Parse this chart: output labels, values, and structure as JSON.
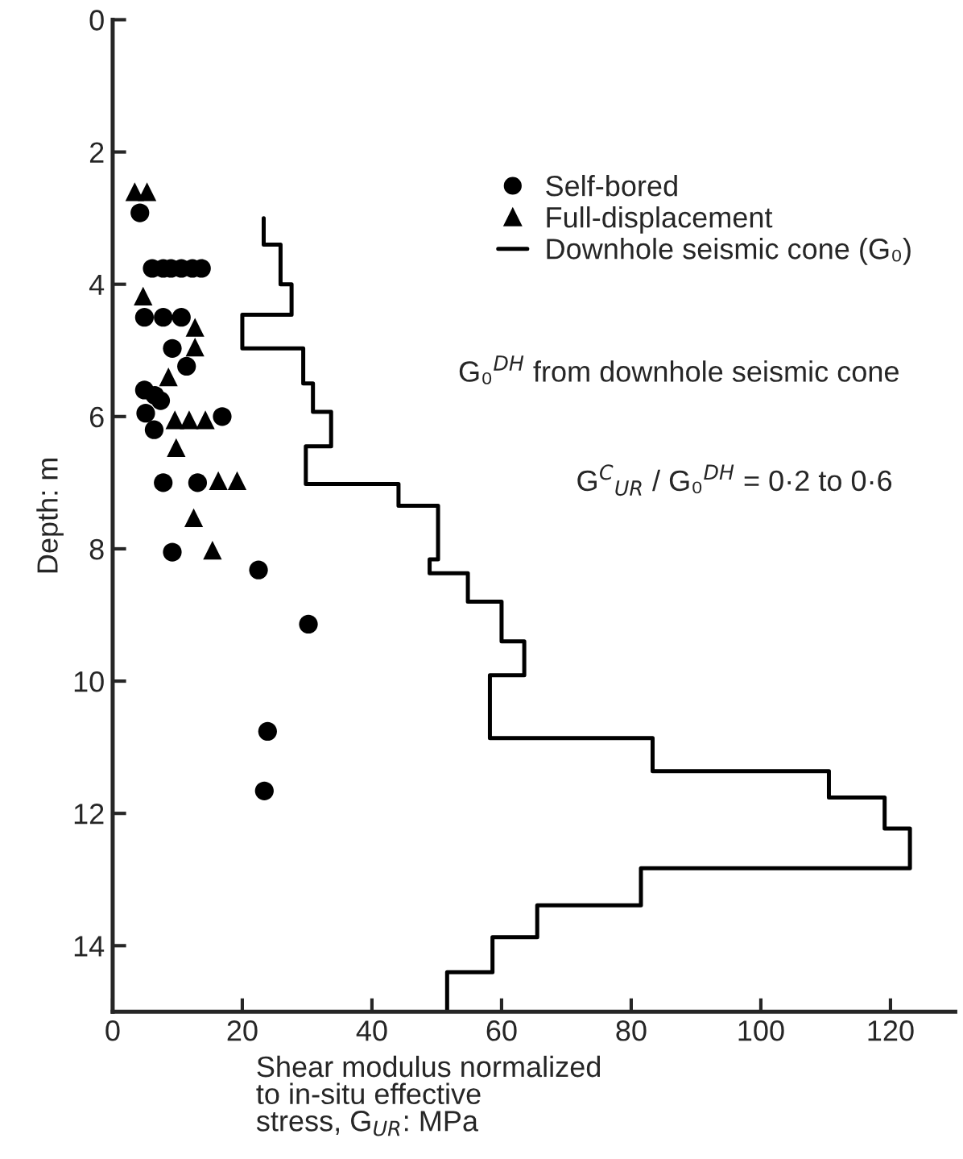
{
  "chart_data": {
    "type": "scatter",
    "xlabel": "Shear modulus normalized\nto in-situ effective\nstress, G$_{UR}$: MPa",
    "ylabel": "Depth: m",
    "xlim": [
      0,
      130
    ],
    "xticks": [
      0,
      20,
      40,
      60,
      80,
      100,
      120
    ],
    "ylim": [
      15,
      0
    ],
    "yticks": [
      0,
      2,
      4,
      6,
      8,
      10,
      12,
      14
    ],
    "grid": false,
    "legend": "top right",
    "annotations": [
      "G₀$^{DH}$ from downhole seismic cone",
      "G$^{C}$$_{UR}$ / G₀$^{DH}$ = 0·2 to 0·6"
    ],
    "series": [
      {
        "name": "Self-bored",
        "marker": "circle",
        "color": "#000000",
        "x": [
          4.2,
          6.1,
          7.8,
          9.0,
          10.6,
          12.3,
          13.7,
          4.9,
          7.8,
          10.6,
          9.2,
          11.4,
          4.9,
          6.5,
          7.4,
          5.1,
          16.9,
          6.4,
          7.8,
          13.1,
          9.2,
          22.5,
          30.2,
          23.9,
          23.4
        ],
        "values": [
          2.92,
          3.76,
          3.76,
          3.76,
          3.76,
          3.76,
          3.76,
          4.5,
          4.5,
          4.5,
          4.97,
          5.24,
          5.6,
          5.68,
          5.76,
          5.95,
          6.0,
          6.2,
          7.0,
          7.0,
          8.05,
          8.32,
          9.14,
          10.76,
          11.66
        ]
      },
      {
        "name": "Full-displacement",
        "marker": "triangle",
        "color": "#000000",
        "x": [
          3.4,
          5.3,
          4.7,
          12.7,
          12.7,
          8.6,
          9.6,
          11.8,
          14.3,
          9.8,
          16.3,
          19.2,
          12.5,
          15.4
        ],
        "values": [
          2.6,
          2.6,
          4.18,
          4.65,
          4.95,
          5.4,
          6.05,
          6.05,
          6.05,
          6.47,
          6.97,
          6.97,
          7.53,
          8.02
        ]
      },
      {
        "name": "Downhole seismic cone (G₀)",
        "type": "line",
        "marker": "none",
        "line_style": "solid",
        "color": "#000000",
        "x": [
          23.3,
          23.3,
          25.9,
          25.9,
          27.6,
          27.6,
          20.0,
          20.0,
          29.4,
          29.4,
          30.9,
          30.9,
          33.7,
          33.7,
          29.8,
          29.8,
          44.1,
          44.1,
          50.2,
          50.2,
          48.9,
          48.9,
          54.8,
          54.8,
          60.0,
          60.0,
          63.5,
          63.5,
          58.2,
          58.2,
          83.3,
          83.3,
          110.5,
          110.5,
          119.1,
          119.1,
          123.0,
          123.0,
          81.5,
          81.5,
          65.5,
          65.5,
          58.6,
          58.6,
          51.6,
          51.6
        ],
        "values": [
          3.0,
          3.4,
          3.4,
          4.0,
          4.0,
          4.46,
          4.46,
          4.97,
          4.97,
          5.5,
          5.5,
          5.93,
          5.93,
          6.45,
          6.45,
          7.02,
          7.02,
          7.35,
          7.35,
          8.16,
          8.16,
          8.37,
          8.37,
          8.8,
          8.8,
          9.4,
          9.4,
          9.91,
          9.91,
          10.86,
          10.86,
          11.36,
          11.36,
          11.76,
          11.76,
          12.23,
          12.23,
          12.83,
          12.83,
          13.39,
          13.39,
          13.87,
          13.87,
          14.4,
          14.4,
          15.0
        ]
      }
    ]
  }
}
